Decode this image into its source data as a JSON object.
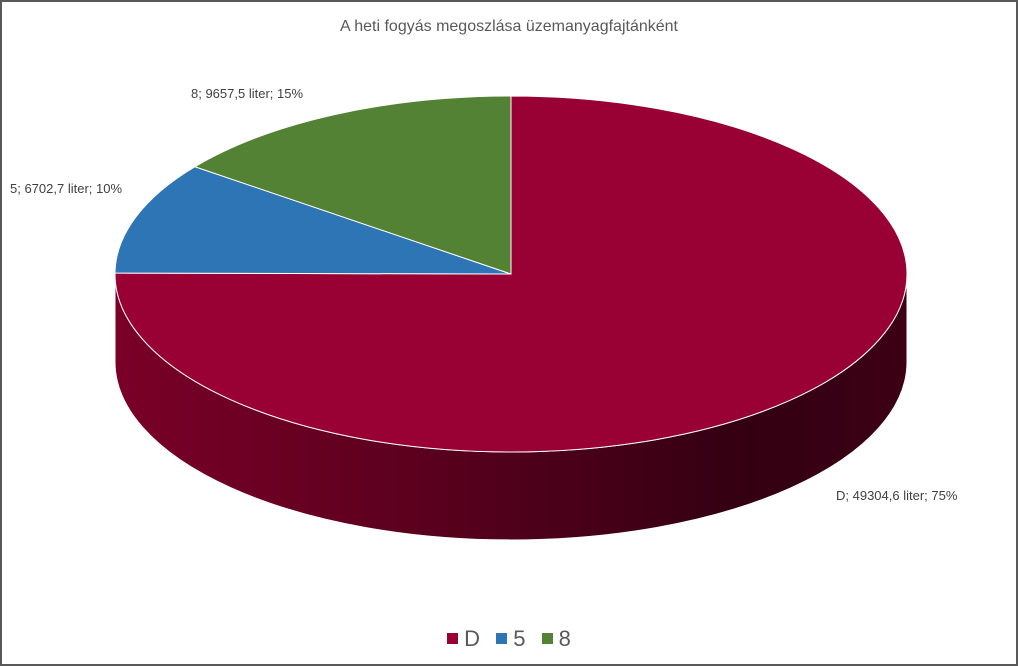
{
  "chart_data": {
    "type": "pie",
    "title": "A heti fogyás megoszlása üzemanyagfajtánként",
    "three_d": true,
    "categories": [
      "D",
      "5",
      "8"
    ],
    "values": [
      49304.6,
      6702.7,
      9657.5
    ],
    "unit": "liter",
    "percentages": [
      75,
      10,
      15
    ],
    "colors": [
      "#990033",
      "#2E75B6",
      "#548235"
    ],
    "data_labels": [
      "D; 49304,6 liter; 75%",
      "5; 6702,7 liter; 10%",
      "8; 9657,5 liter; 15%"
    ],
    "legend": {
      "position": "bottom",
      "entries": [
        "D",
        "5",
        "8"
      ]
    }
  }
}
